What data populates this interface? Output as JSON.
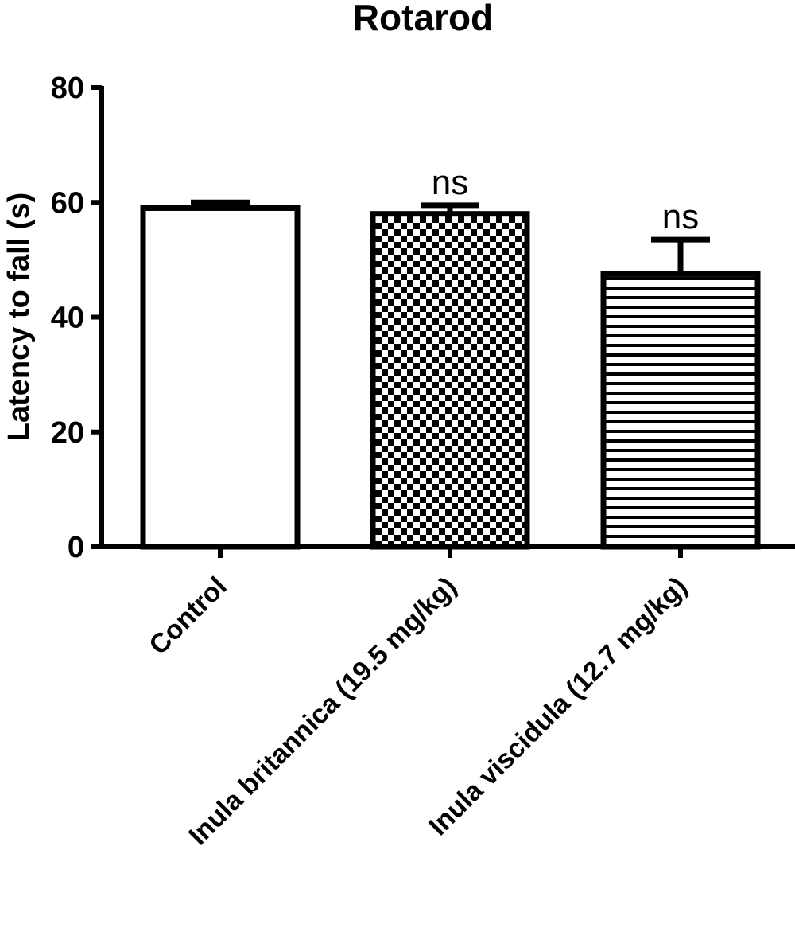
{
  "chart_data": {
    "type": "bar",
    "title": "Rotarod",
    "xlabel": "",
    "ylabel": "Latency to fall (s)",
    "ylim": [
      0,
      80
    ],
    "yticks": [
      "0",
      "20",
      "40",
      "60",
      "80"
    ],
    "categories": [
      "Control",
      "Inula britannica (19.5 mg/kg)",
      "Inula viscidula (12.7 mg/kg)"
    ],
    "values": [
      59,
      58,
      47.5
    ],
    "errors": [
      1,
      1.5,
      6
    ],
    "annotations": [
      "",
      "ns",
      "ns"
    ],
    "fills": [
      "plain",
      "checkerboard",
      "horizontal-lines"
    ],
    "grid": false,
    "legend": "none"
  }
}
